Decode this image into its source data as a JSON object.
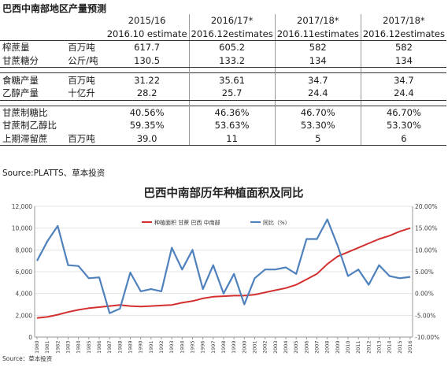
{
  "table": {
    "title": "巴西中南部地区产量预测",
    "headers": [
      {
        "line1": "2015/16",
        "line2": "2016.10 estimate"
      },
      {
        "line1": "2016/17*",
        "line2": "2016.12estimates"
      },
      {
        "line1": "2017/18*",
        "line2": "2016.11estimates"
      },
      {
        "line1": "2017/18*",
        "line2": "2016.12estimates"
      }
    ],
    "groups": [
      [
        {
          "label": "榨蔗量",
          "unit": "百万吨",
          "values": [
            "617.7",
            "605.2",
            "582",
            "582"
          ]
        },
        {
          "label": "甘蔗糖分",
          "unit": "公斤/吨",
          "values": [
            "130.5",
            "133.2",
            "134",
            "134"
          ]
        }
      ],
      [
        {
          "label": "食糖产量",
          "unit": "百万吨",
          "values": [
            "31.22",
            "35.61",
            "34.7",
            "34.7"
          ]
        },
        {
          "label": "乙醇产量",
          "unit": "十亿升",
          "values": [
            "28.2",
            "25.7",
            "24.4",
            "24.4"
          ]
        }
      ],
      [
        {
          "label": "甘蔗制糖比",
          "unit": "",
          "values": [
            "40.56%",
            "46.36%",
            "46.70%",
            "46.70%"
          ]
        },
        {
          "label": "甘蔗制乙醇比",
          "unit": "",
          "values": [
            "59.35%",
            "53.63%",
            "53.30%",
            "53.30%"
          ]
        },
        {
          "label": "上期滞留蔗",
          "unit": "百万吨",
          "values": [
            "39.0",
            "11",
            "5",
            "6"
          ]
        }
      ]
    ],
    "source": "Source:PLATTS、草本投资"
  },
  "chart_data": {
    "type": "line",
    "title": "巴西中南部历年种植面积及同比",
    "x": [
      "1980",
      "1981",
      "1982",
      "1983",
      "1984",
      "1985",
      "1986",
      "1987",
      "1988",
      "1989",
      "1990",
      "1991",
      "1992",
      "1993",
      "1994",
      "1995",
      "1996",
      "1997",
      "1998",
      "1999",
      "2000",
      "2001",
      "2002",
      "2003",
      "2004",
      "2005",
      "2006",
      "2007",
      "2008",
      "2009",
      "2010",
      "2011",
      "2012",
      "2013",
      "2014",
      "2015",
      "2016"
    ],
    "series": [
      {
        "name": "种植面积 甘蔗 巴西 中南部",
        "axis": "left",
        "color": "#d32f2f",
        "values": [
          1750,
          1850,
          2050,
          2300,
          2500,
          2650,
          2750,
          2850,
          2950,
          2850,
          2800,
          2850,
          2900,
          2950,
          3150,
          3300,
          3550,
          3700,
          3750,
          3800,
          3800,
          3900,
          4100,
          4300,
          4500,
          4800,
          5300,
          5800,
          6700,
          7400,
          7800,
          8200,
          8600,
          9000,
          9300,
          9700,
          10000
        ]
      },
      {
        "name": "同比（%）",
        "axis": "right",
        "color": "#4f81bd",
        "values": [
          7.5,
          12.0,
          15.5,
          6.5,
          6.3,
          3.5,
          3.7,
          -4.5,
          -3.5,
          4.8,
          0.5,
          1.0,
          0.5,
          10.5,
          5.5,
          10.0,
          1.0,
          6.5,
          0.0,
          4.5,
          -2.5,
          3.5,
          5.5,
          5.5,
          6.0,
          4.5,
          12.5,
          12.5,
          17.0,
          11.0,
          4.0,
          5.5,
          2.0,
          6.5,
          4.0,
          3.5,
          3.8
        ]
      }
    ],
    "left_axis": {
      "min": 0,
      "max": 12000,
      "ticks": [
        "0",
        "2,000",
        "4,000",
        "6,000",
        "8,000",
        "10,000",
        "12,000"
      ]
    },
    "right_axis": {
      "min": -10,
      "max": 20,
      "ticks": [
        "-10.00%",
        "-5.00%",
        "0.00%",
        "5.00%",
        "10.00%",
        "15.00%",
        "20.00%"
      ]
    },
    "legend_position": "top-left",
    "grid": true,
    "source": "Source：草本投资"
  }
}
